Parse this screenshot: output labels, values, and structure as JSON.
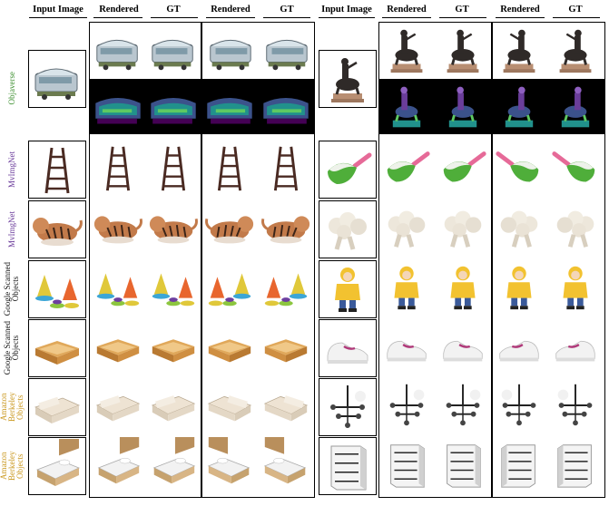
{
  "headers": {
    "input_image_left": "Input Image",
    "rendered_1": "Rendered",
    "gt_1": "GT",
    "rendered_2": "Rendered",
    "gt_2": "GT",
    "input_image_right": "Input Image",
    "rendered_3": "Rendered",
    "gt_3": "GT",
    "rendered_4": "Rendered",
    "gt_4": "GT"
  },
  "row_labels": [
    {
      "text": "Objaverse",
      "color": "#3c8f2f"
    },
    {
      "text": "MvImgNet",
      "color": "#6a3a9a"
    },
    {
      "text": "MvImgNet",
      "color": "#6a3a9a"
    },
    {
      "text": "Google Scanned\nObjects",
      "color": "#111111"
    },
    {
      "text": "Google Scanned\nObjects",
      "color": "#111111"
    },
    {
      "text": "Amazon Berkeley\nObjects",
      "color": "#c9961a"
    },
    {
      "text": "Amazon Berkeley\nObjects",
      "color": "#c9961a"
    }
  ],
  "left_objects": [
    "trolley-bus",
    "ladder",
    "tiger",
    "ring-stacker-toy",
    "wooden-tray",
    "sofa",
    "bed"
  ],
  "right_objects": [
    "centaur-statue",
    "popsicle",
    "cauliflower",
    "yellow-coat-doll",
    "sneaker",
    "pendant-lamp",
    "white-dresser"
  ]
}
